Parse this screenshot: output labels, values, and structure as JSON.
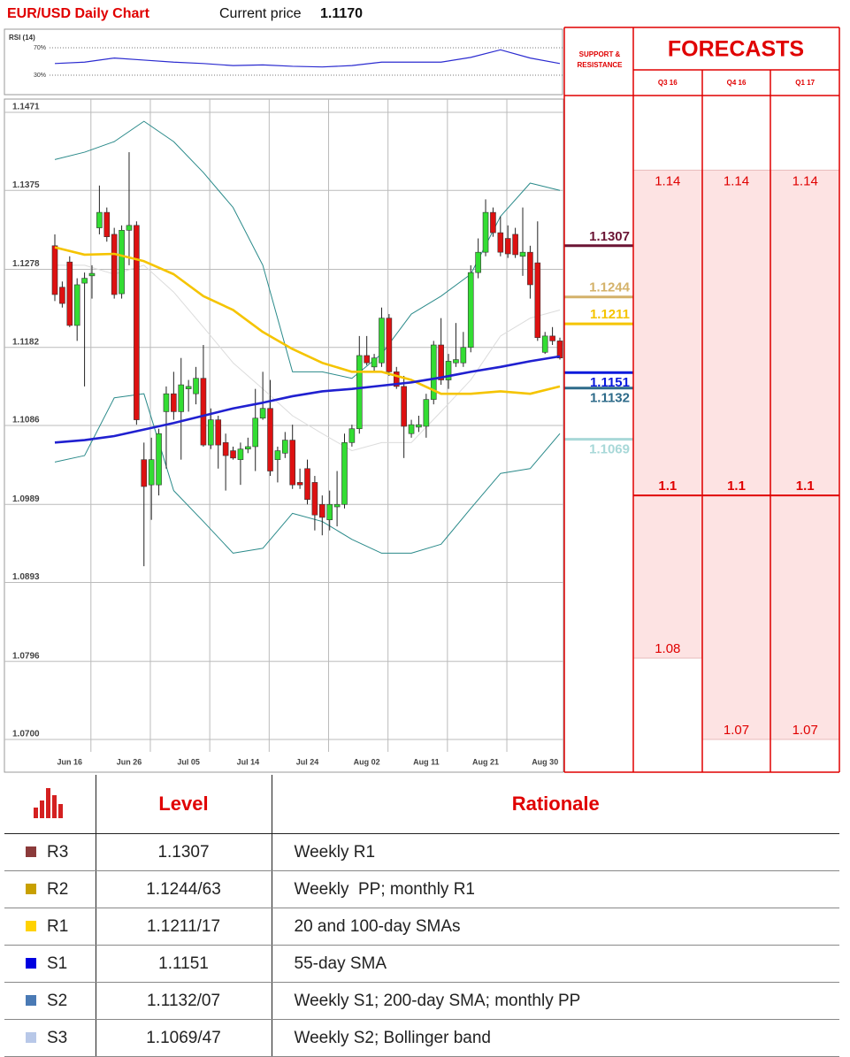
{
  "header": {
    "title": "EUR/USD Daily Chart",
    "price_label": "Current price",
    "price": "1.1170"
  },
  "chart_data": [
    {
      "type": "line",
      "title": "RSI (14)",
      "series": [
        {
          "color": "#2b2bd0",
          "values": [
            47,
            49,
            55,
            52,
            49,
            47,
            44,
            45,
            43,
            42,
            44,
            49,
            49,
            49,
            56,
            67,
            55,
            47
          ]
        }
      ],
      "ylim": [
        10,
        90
      ],
      "yticks": [
        {
          "value": 30,
          "label": "30%"
        },
        {
          "value": 70,
          "label": "70%"
        }
      ],
      "grid": true
    },
    {
      "type": "candlestick",
      "categories": [
        null,
        null,
        "Jun 16",
        null,
        null,
        null,
        null,
        null,
        null,
        null,
        "Jun 26",
        null,
        null,
        null,
        null,
        null,
        null,
        null,
        "Jul 05",
        null,
        null,
        null,
        null,
        null,
        null,
        null,
        "Jul 14",
        null,
        null,
        null,
        null,
        null,
        null,
        null,
        "Jul 24",
        null,
        null,
        null,
        null,
        null,
        null,
        null,
        "Aug 02",
        null,
        null,
        null,
        null,
        null,
        null,
        null,
        "Aug 11",
        null,
        null,
        null,
        null,
        null,
        null,
        null,
        "Aug 21",
        null,
        null,
        null,
        null,
        null,
        null,
        null,
        "Aug 30",
        null,
        null
      ],
      "open": [
        1.1307,
        1.1256,
        1.1287,
        1.1209,
        1.1261,
        1.127,
        1.1329,
        1.1348,
        1.1321,
        1.1248,
        1.1326,
        1.1332,
        1.1044,
        1.1013,
        1.1013,
        1.1103,
        1.1125,
        1.1103,
        1.1131,
        1.1125,
        1.1144,
        1.1062,
        1.1093,
        1.1065,
        1.1055,
        1.1044,
        1.1057,
        1.106,
        1.1095,
        1.1107,
        1.1044,
        1.1052,
        1.1068,
        1.1016,
        1.1033,
        1.1016,
        1.0989,
        1.097,
        1.0986,
        1.0989,
        1.1065,
        1.1082,
        1.1172,
        1.1158,
        1.1163,
        1.1218,
        1.1152,
        1.1134,
        1.1076,
        1.1084,
        1.1085,
        1.1118,
        1.1185,
        1.1142,
        1.1163,
        1.1163,
        1.1182,
        1.1274,
        1.1299,
        1.1348,
        1.1323,
        1.1316,
        1.1321,
        1.1294,
        1.1299,
        1.1286,
        1.1176,
        1.1196,
        1.119
      ],
      "high": [
        1.1321,
        1.1263,
        1.1294,
        1.1267,
        1.1274,
        1.1283,
        1.1381,
        1.1354,
        1.1329,
        1.1332,
        1.1422,
        1.1337,
        1.1065,
        1.1071,
        1.1082,
        1.1134,
        1.1152,
        1.1169,
        1.1142,
        1.1158,
        1.1185,
        1.1107,
        1.1098,
        1.1076,
        1.106,
        1.1065,
        1.1071,
        1.1131,
        1.1152,
        1.1142,
        1.106,
        1.1078,
        1.1087,
        1.1033,
        1.1044,
        1.1024,
        1.1,
        1.1006,
        1.103,
        1.1076,
        1.1087,
        1.1196,
        1.1196,
        1.1174,
        1.1231,
        1.1223,
        1.1158,
        1.1147,
        1.1093,
        1.1098,
        1.1125,
        1.119,
        1.1218,
        1.1174,
        1.1212,
        1.1201,
        1.1283,
        1.1316,
        1.1364,
        1.1354,
        1.1343,
        1.1332,
        1.1329,
        1.1354,
        1.1307,
        1.1337,
        1.1201,
        1.1207,
        1.1194
      ],
      "low": [
        1.1239,
        1.1231,
        1.1207,
        1.119,
        1.1134,
        1.1242,
        1.1321,
        1.1312,
        1.1242,
        1.1242,
        1.1283,
        1.1087,
        1.0913,
        1.097,
        1.1,
        1.1033,
        1.1093,
        1.1044,
        1.1103,
        1.1112,
        1.106,
        1.1057,
        1.1033,
        1.1006,
        1.1044,
        1.1013,
        1.1052,
        1.103,
        1.1093,
        1.1024,
        1.1016,
        1.1046,
        1.1008,
        1.1008,
        1.0989,
        1.0957,
        1.0951,
        1.0957,
        1.0962,
        1.0984,
        1.106,
        1.1076,
        1.116,
        1.1152,
        1.1158,
        1.1147,
        1.1131,
        1.1046,
        1.1071,
        1.1078,
        1.1071,
        1.1112,
        1.1136,
        1.1131,
        1.1158,
        1.1158,
        1.1176,
        1.1267,
        1.1294,
        1.1318,
        1.1294,
        1.1292,
        1.1292,
        1.127,
        1.1242,
        1.119,
        1.1174,
        1.1185,
        1.1167
      ],
      "close": [
        1.1247,
        1.1236,
        1.1209,
        1.1259,
        1.1267,
        1.1273,
        1.1348,
        1.1318,
        1.1247,
        1.1326,
        1.1332,
        1.1093,
        1.1011,
        1.1044,
        1.1076,
        1.1125,
        1.1103,
        1.1136,
        1.1134,
        1.1144,
        1.1062,
        1.1093,
        1.1062,
        1.1049,
        1.1046,
        1.1057,
        1.106,
        1.1095,
        1.1107,
        1.103,
        1.1055,
        1.1068,
        1.1013,
        1.1013,
        1.0995,
        1.0976,
        1.0973,
        1.0989,
        1.0989,
        1.1065,
        1.1082,
        1.1172,
        1.1163,
        1.1169,
        1.1218,
        1.1152,
        1.1134,
        1.1085,
        1.1087,
        1.1087,
        1.1118,
        1.1185,
        1.1142,
        1.1165,
        1.1167,
        1.1182,
        1.1274,
        1.1299,
        1.1348,
        1.1323,
        1.1299,
        1.1297,
        1.1296,
        1.1299,
        1.1259,
        1.1194,
        1.1196,
        1.119,
        1.1169
      ],
      "up_color": "#33dd33",
      "down_color": "#dd1111",
      "overlays": [
        {
          "color": "#2a8a8a",
          "values": [
            1.1413,
            1.1422,
            1.1435,
            1.146,
            1.1435,
            1.1397,
            1.1354,
            1.1283,
            1.1152,
            1.1152,
            1.1144,
            1.1174,
            1.1223,
            1.1245,
            1.1272,
            1.1343,
            1.1384,
            1.1375
          ]
        },
        {
          "color": "#2a8a8a",
          "values": [
            1.1041,
            1.1049,
            1.112,
            1.1125,
            1.1006,
            1.0968,
            1.0929,
            1.0935,
            1.0978,
            1.0968,
            1.0946,
            1.0929,
            1.0929,
            1.094,
            1.0984,
            1.1027,
            1.1033,
            1.1076
          ]
        },
        {
          "color": "#dcdcdc",
          "values": [
            1.1283,
            1.1283,
            1.1272,
            1.1283,
            1.125,
            1.1207,
            1.1163,
            1.1131,
            1.1098,
            1.1076,
            1.1055,
            1.1065,
            1.1065,
            1.1103,
            1.1142,
            1.1196,
            1.1218,
            1.1228
          ]
        },
        {
          "color": "#f5c400",
          "values": [
            1.1305,
            1.1296,
            1.1297,
            1.1288,
            1.1272,
            1.1245,
            1.1228,
            1.1201,
            1.118,
            1.1163,
            1.1152,
            1.1152,
            1.1142,
            1.1125,
            1.1125,
            1.1128,
            1.1125,
            1.1134
          ]
        },
        {
          "color": "#2020d0",
          "values": [
            1.1065,
            1.1068,
            1.1073,
            1.1081,
            1.1089,
            1.1098,
            1.1107,
            1.1114,
            1.1122,
            1.1128,
            1.1131,
            1.1135,
            1.1139,
            1.1145,
            1.1152,
            1.1158,
            1.1165,
            1.1171
          ]
        }
      ],
      "ylim": [
        1.07,
        1.1471
      ],
      "yticks": [
        {
          "value": 1.07,
          "label": "1.0700"
        },
        1.0796,
        1.0893,
        1.0989,
        1.1086,
        1.1182,
        1.1278,
        1.1375,
        1.1471
      ],
      "grid": true,
      "support_resistance": {
        "title": "SUPPORT & RESISTANCE",
        "levels": [
          {
            "value": 1.1307,
            "color": "#6b1535"
          },
          {
            "value": 1.1244,
            "color": "#d4b26a"
          },
          {
            "value": 1.1211,
            "color": "#f5c400"
          },
          {
            "value": 1.1151,
            "color": "#0a1adc"
          },
          {
            "value": 1.1132,
            "color": "#2e6b8a"
          },
          {
            "value": 1.1069,
            "color": "#a8d8d8"
          }
        ]
      },
      "forecasts": {
        "title": "FORECASTS",
        "periods": [
          "Q3 16",
          "Q4 16",
          "Q1 17"
        ],
        "high": [
          1.14,
          1.14,
          1.14
        ],
        "mid": [
          1.1,
          1.1,
          1.1
        ],
        "low": [
          1.08,
          1.07,
          1.07
        ],
        "color": "#e00000",
        "fill": "#fde3e3"
      }
    }
  ],
  "table": {
    "headers": [
      "Level",
      "Rationale"
    ],
    "rows": [
      {
        "name": "R3",
        "color": "#8b3a3a",
        "level": "1.1307",
        "rationale": "Weekly R1"
      },
      {
        "name": "R2",
        "color": "#c8a000",
        "level": "1.1244/63",
        "rationale": "Weekly  PP; monthly R1"
      },
      {
        "name": "R1",
        "color": "#ffd200",
        "level": "1.1211/17",
        "rationale": "20 and 100-day SMAs"
      },
      {
        "name": "S1",
        "color": "#0000e0",
        "level": "1.1151",
        "rationale": "55-day SMA"
      },
      {
        "name": "S2",
        "color": "#4a7ab5",
        "level": "1.1132/07",
        "rationale": "Weekly S1; 200-day SMA; monthly PP"
      },
      {
        "name": "S3",
        "color": "#b8c8e8",
        "level": "1.1069/47",
        "rationale": "Weekly S2; Bollinger band"
      }
    ]
  }
}
